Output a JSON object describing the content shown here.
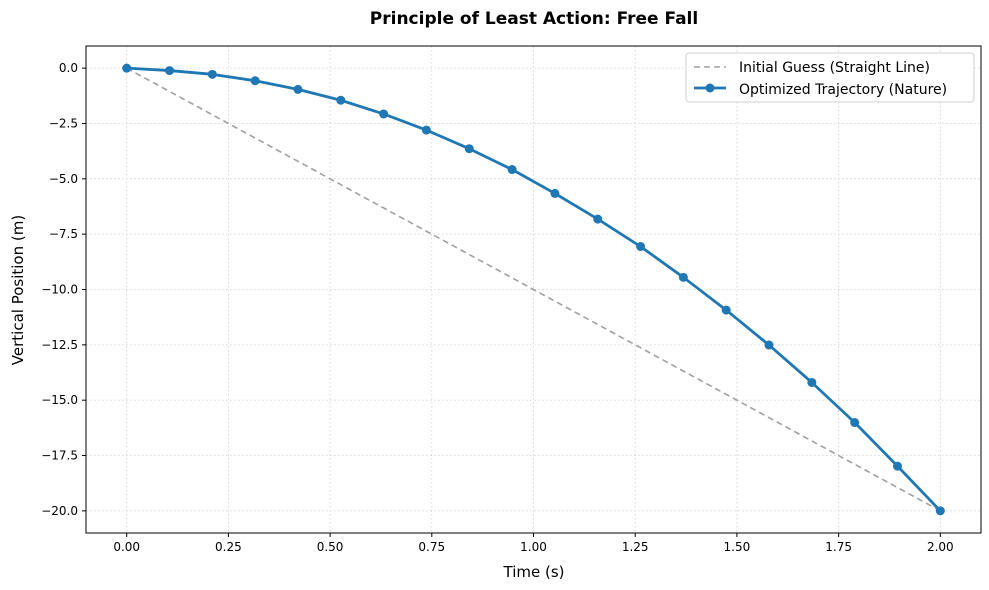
{
  "chart_data": {
    "type": "line",
    "title": "Principle of Least Action: Free Fall",
    "xlabel": "Time (s)",
    "ylabel": "Vertical Position (m)",
    "xlim": [
      -0.1,
      2.1
    ],
    "ylim": [
      -21.0,
      1.0
    ],
    "xticks": [
      0.0,
      0.25,
      0.5,
      0.75,
      1.0,
      1.25,
      1.5,
      1.75,
      2.0
    ],
    "xtick_labels": [
      "0.00",
      "0.25",
      "0.50",
      "0.75",
      "1.00",
      "1.25",
      "1.50",
      "1.75",
      "2.00"
    ],
    "yticks": [
      0.0,
      -2.5,
      -5.0,
      -7.5,
      -10.0,
      -12.5,
      -15.0,
      -17.5,
      -20.0
    ],
    "ytick_labels": [
      "0.0",
      "−2.5",
      "−5.0",
      "−7.5",
      "−10.0",
      "−12.5",
      "−15.0",
      "−17.5",
      "−20.0"
    ],
    "grid": true,
    "legend_position": "top-right",
    "series": [
      {
        "name": "Initial Guess (Straight Line)",
        "style": "dashed",
        "color": "#a0a0a0",
        "x": [
          0.0,
          2.0
        ],
        "y": [
          0.0,
          -20.0
        ]
      },
      {
        "name": "Optimized Trajectory (Nature)",
        "style": "solid-markers",
        "color": "#1f77b4",
        "x": [
          0.0,
          0.1053,
          0.2105,
          0.3158,
          0.4211,
          0.5263,
          0.6316,
          0.7368,
          0.8421,
          0.9474,
          1.0526,
          1.1579,
          1.2632,
          1.3684,
          1.4737,
          1.5789,
          1.6842,
          1.7895,
          1.8947,
          2.0
        ],
        "y": [
          0.0,
          -0.11,
          -0.28,
          -0.57,
          -0.96,
          -1.45,
          -2.07,
          -2.8,
          -3.64,
          -4.58,
          -5.66,
          -6.82,
          -8.06,
          -9.45,
          -10.93,
          -12.51,
          -14.2,
          -16.01,
          -17.98,
          -20.0
        ]
      }
    ]
  }
}
